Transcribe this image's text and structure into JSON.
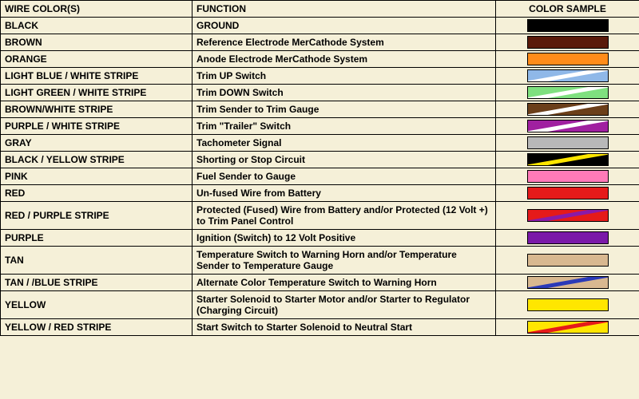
{
  "table": {
    "headers": {
      "wire": "WIRE COLOR(S)",
      "func": "FUNCTION",
      "sample": "COLOR SAMPLE"
    },
    "rows": [
      {
        "wire": "BLACK",
        "func": "GROUND",
        "base": "#000000",
        "stripe": null
      },
      {
        "wire": "BROWN",
        "func": "Reference Electrode MerCathode System",
        "base": "#5a1a0a",
        "stripe": null
      },
      {
        "wire": "ORANGE",
        "func": "Anode Electrode MerCathode System",
        "base": "#ff8c1a",
        "stripe": null
      },
      {
        "wire": "LIGHT BLUE / WHITE STRIPE",
        "func": "Trim UP Switch",
        "base": "#8fb8e8",
        "stripe": "#ffffff"
      },
      {
        "wire": "LIGHT GREEN / WHITE STRIPE",
        "func": "Trim DOWN Switch",
        "base": "#7fe07f",
        "stripe": "#ffffff"
      },
      {
        "wire": "BROWN/WHITE STRIPE",
        "func": "Trim Sender to Trim Gauge",
        "base": "#6b3f1a",
        "stripe": "#ffffff"
      },
      {
        "wire": "PURPLE / WHITE STRIPE",
        "func": "Trim \"Trailer\" Switch",
        "base": "#a020a0",
        "stripe": "#ffffff"
      },
      {
        "wire": "GRAY",
        "func": "Tachometer Signal",
        "base": "#b8b8b8",
        "stripe": null
      },
      {
        "wire": "BLACK / YELLOW STRIPE",
        "func": "Shorting or Stop Circuit",
        "base": "#000000",
        "stripe": "#ffe600"
      },
      {
        "wire": "PINK",
        "func": "Fuel Sender to Gauge",
        "base": "#ff7ab8",
        "stripe": null
      },
      {
        "wire": "RED",
        "func": "Un-fused Wire from Battery",
        "base": "#e51a1a",
        "stripe": null
      },
      {
        "wire": "RED / PURPLE STRIPE",
        "func": "Protected (Fused) Wire from Battery and/or Protected (12 Volt +) to Trim Panel Control",
        "base": "#e51a1a",
        "stripe": "#8a1aa8"
      },
      {
        "wire": "PURPLE",
        "func": "Ignition (Switch) to 12 Volt Positive",
        "base": "#7a1aa8",
        "stripe": null
      },
      {
        "wire": "TAN",
        "func": "Temperature Switch to Warning Horn and/or Temperature Sender to Temperature Gauge",
        "base": "#d8b890",
        "stripe": null
      },
      {
        "wire": "TAN / /BLUE STRIPE",
        "func": "Alternate Color Temperature Switch to Warning Horn",
        "base": "#d8b890",
        "stripe": "#2a3ab8"
      },
      {
        "wire": "YELLOW",
        "func": "Starter Solenoid to Starter Motor and/or Starter to Regulator (Charging Circuit)",
        "base": "#ffe600",
        "stripe": null
      },
      {
        "wire": "YELLOW / RED STRIPE",
        "func": "Start Switch to Starter Solenoid to Neutral Start",
        "base": "#ffe600",
        "stripe": "#e51a1a"
      }
    ]
  },
  "style": {
    "bg": "#f5f0d8",
    "border": "#000000",
    "font_family": "Arial, Helvetica, sans-serif",
    "header_fontsize": 12,
    "cell_fontsize": 12,
    "swatch_w": 100,
    "swatch_h": 14,
    "col_widths": {
      "wire": 240,
      "func": 380,
      "sample": 180
    }
  }
}
